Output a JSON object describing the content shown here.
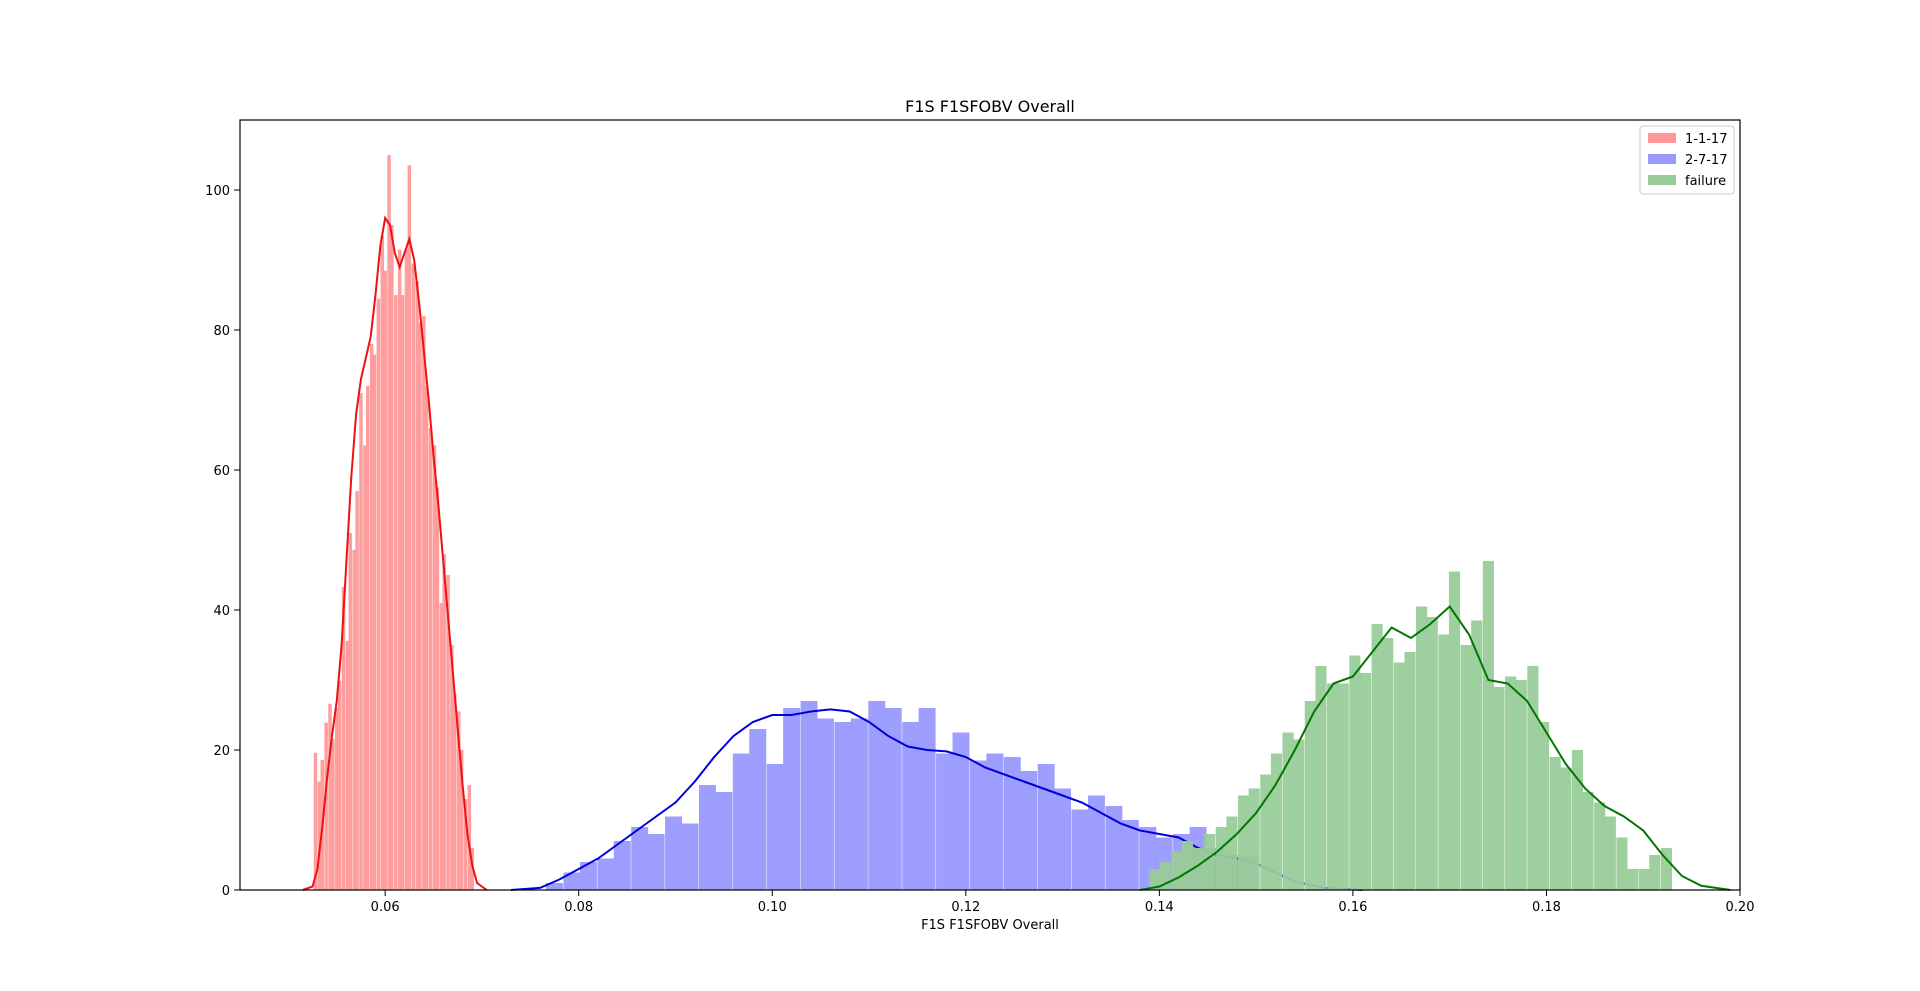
{
  "chart_data": {
    "type": "histogram",
    "title": "F1S F1SFOBV Overall",
    "xlabel": "F1S F1SFOBV Overall",
    "ylabel": "",
    "xlim": [
      0.045,
      0.2
    ],
    "ylim": [
      0,
      110
    ],
    "xticks": [
      0.06,
      0.08,
      0.1,
      0.12,
      0.14,
      0.16,
      0.18,
      0.2
    ],
    "xtick_labels": [
      "0.06",
      "0.08",
      "0.10",
      "0.12",
      "0.14",
      "0.16",
      "0.18",
      "0.20"
    ],
    "yticks": [
      0,
      20,
      40,
      60,
      80,
      100
    ],
    "ytick_labels": [
      "0",
      "20",
      "40",
      "60",
      "80",
      "100"
    ],
    "legend_position": "top-right",
    "grid": false,
    "series": [
      {
        "name": "1-1-17",
        "bar_color": "#ff9999",
        "line_color": "#ee1111",
        "bin_width": 0.00036,
        "bins": [
          [
            0.0528,
            19.6
          ],
          [
            0.0532,
            15.5
          ],
          [
            0.0535,
            18.6
          ],
          [
            0.0539,
            23.9
          ],
          [
            0.0543,
            26.6
          ],
          [
            0.0546,
            21.6
          ],
          [
            0.055,
            26.0
          ],
          [
            0.0553,
            29.9
          ],
          [
            0.0557,
            43.3
          ],
          [
            0.0561,
            35.6
          ],
          [
            0.0564,
            51.0
          ],
          [
            0.0568,
            48.6
          ],
          [
            0.0571,
            57.0
          ],
          [
            0.0575,
            71.0
          ],
          [
            0.0579,
            63.5
          ],
          [
            0.0582,
            72.0
          ],
          [
            0.0586,
            78.0
          ],
          [
            0.0589,
            76.5
          ],
          [
            0.0593,
            84.5
          ],
          [
            0.0597,
            93.5
          ],
          [
            0.06,
            88.5
          ],
          [
            0.0604,
            105.0
          ],
          [
            0.0607,
            95.0
          ],
          [
            0.0611,
            85.0
          ],
          [
            0.0615,
            91.5
          ],
          [
            0.0618,
            85.0
          ],
          [
            0.0622,
            91.5
          ],
          [
            0.0625,
            103.5
          ],
          [
            0.0629,
            89.5
          ],
          [
            0.0633,
            87.0
          ],
          [
            0.0636,
            81.0
          ],
          [
            0.064,
            82.0
          ],
          [
            0.0643,
            72.0
          ],
          [
            0.0647,
            66.0
          ],
          [
            0.0651,
            63.5
          ],
          [
            0.0654,
            57.5
          ],
          [
            0.0658,
            41.0
          ],
          [
            0.0661,
            48.0
          ],
          [
            0.0665,
            45.0
          ],
          [
            0.0669,
            35.0
          ],
          [
            0.0672,
            28.0
          ],
          [
            0.0676,
            25.5
          ],
          [
            0.0679,
            20.0
          ],
          [
            0.0683,
            13.0
          ],
          [
            0.0687,
            15.0
          ],
          [
            0.069,
            6.0
          ]
        ],
        "kde": [
          [
            0.0515,
            0.0
          ],
          [
            0.0525,
            0.5
          ],
          [
            0.053,
            3.0
          ],
          [
            0.0535,
            9.0
          ],
          [
            0.054,
            16.0
          ],
          [
            0.0545,
            22.0
          ],
          [
            0.055,
            27.0
          ],
          [
            0.0555,
            35.0
          ],
          [
            0.056,
            47.0
          ],
          [
            0.0565,
            59.0
          ],
          [
            0.057,
            68.0
          ],
          [
            0.0575,
            73.0
          ],
          [
            0.058,
            76.0
          ],
          [
            0.0585,
            79.0
          ],
          [
            0.059,
            85.0
          ],
          [
            0.0595,
            92.0
          ],
          [
            0.06,
            96.0
          ],
          [
            0.0605,
            95.0
          ],
          [
            0.061,
            91.0
          ],
          [
            0.0615,
            89.0
          ],
          [
            0.062,
            91.0
          ],
          [
            0.0625,
            93.0
          ],
          [
            0.063,
            90.0
          ],
          [
            0.0635,
            84.0
          ],
          [
            0.064,
            77.0
          ],
          [
            0.0645,
            70.0
          ],
          [
            0.065,
            62.0
          ],
          [
            0.0655,
            55.0
          ],
          [
            0.066,
            47.0
          ],
          [
            0.0665,
            39.0
          ],
          [
            0.067,
            31.0
          ],
          [
            0.0675,
            23.0
          ],
          [
            0.068,
            15.0
          ],
          [
            0.0685,
            8.0
          ],
          [
            0.069,
            3.5
          ],
          [
            0.0695,
            1.0
          ],
          [
            0.0705,
            0.0
          ]
        ]
      },
      {
        "name": "2-7-17",
        "bar_color": "#9999ff",
        "line_color": "#0000dd",
        "bin_width": 0.00175,
        "bins": [
          [
            0.0775,
            1.0
          ],
          [
            0.0793,
            2.5
          ],
          [
            0.081,
            4.0
          ],
          [
            0.0828,
            4.5
          ],
          [
            0.0845,
            7.0
          ],
          [
            0.0863,
            9.0
          ],
          [
            0.088,
            8.0
          ],
          [
            0.0898,
            10.5
          ],
          [
            0.0915,
            9.5
          ],
          [
            0.0933,
            15.0
          ],
          [
            0.095,
            14.0
          ],
          [
            0.0968,
            19.5
          ],
          [
            0.0985,
            23.0
          ],
          [
            0.1003,
            18.0
          ],
          [
            0.102,
            26.0
          ],
          [
            0.1038,
            27.0
          ],
          [
            0.1055,
            24.5
          ],
          [
            0.1073,
            24.0
          ],
          [
            0.109,
            24.5
          ],
          [
            0.1108,
            27.0
          ],
          [
            0.1125,
            26.0
          ],
          [
            0.1143,
            24.0
          ],
          [
            0.116,
            26.0
          ],
          [
            0.1178,
            19.5
          ],
          [
            0.1195,
            22.5
          ],
          [
            0.1213,
            18.5
          ],
          [
            0.123,
            19.5
          ],
          [
            0.1248,
            19.0
          ],
          [
            0.1265,
            17.0
          ],
          [
            0.1283,
            18.0
          ],
          [
            0.13,
            14.5
          ],
          [
            0.1318,
            11.5
          ],
          [
            0.1335,
            13.5
          ],
          [
            0.1353,
            12.0
          ],
          [
            0.137,
            10.0
          ],
          [
            0.1388,
            9.0
          ],
          [
            0.1405,
            7.5
          ],
          [
            0.1423,
            8.0
          ],
          [
            0.144,
            9.0
          ],
          [
            0.1458,
            6.0
          ],
          [
            0.1475,
            5.0
          ],
          [
            0.1493,
            5.0
          ]
        ],
        "kde": [
          [
            0.073,
            0.0
          ],
          [
            0.076,
            0.3
          ],
          [
            0.078,
            1.5
          ],
          [
            0.08,
            3.0
          ],
          [
            0.082,
            4.5
          ],
          [
            0.084,
            6.5
          ],
          [
            0.086,
            8.5
          ],
          [
            0.088,
            10.5
          ],
          [
            0.09,
            12.5
          ],
          [
            0.092,
            15.5
          ],
          [
            0.094,
            19.0
          ],
          [
            0.096,
            22.0
          ],
          [
            0.098,
            24.0
          ],
          [
            0.1,
            25.0
          ],
          [
            0.102,
            25.0
          ],
          [
            0.104,
            25.5
          ],
          [
            0.106,
            25.8
          ],
          [
            0.108,
            25.5
          ],
          [
            0.11,
            24.0
          ],
          [
            0.112,
            22.0
          ],
          [
            0.114,
            20.5
          ],
          [
            0.116,
            20.0
          ],
          [
            0.118,
            19.8
          ],
          [
            0.12,
            19.0
          ],
          [
            0.122,
            17.5
          ],
          [
            0.124,
            16.5
          ],
          [
            0.126,
            15.5
          ],
          [
            0.128,
            14.5
          ],
          [
            0.13,
            13.5
          ],
          [
            0.132,
            12.5
          ],
          [
            0.134,
            11.0
          ],
          [
            0.136,
            9.5
          ],
          [
            0.138,
            8.5
          ],
          [
            0.14,
            8.0
          ],
          [
            0.142,
            7.5
          ],
          [
            0.144,
            6.0
          ],
          [
            0.146,
            5.0
          ],
          [
            0.148,
            4.5
          ],
          [
            0.15,
            3.8
          ],
          [
            0.152,
            2.5
          ],
          [
            0.154,
            1.2
          ],
          [
            0.157,
            0.3
          ],
          [
            0.161,
            0.0
          ]
        ]
      },
      {
        "name": "failure",
        "bar_color": "#99cc99",
        "line_color": "#007700",
        "bin_width": 0.00115,
        "bins": [
          [
            0.1395,
            3.0
          ],
          [
            0.1406,
            4.0
          ],
          [
            0.1418,
            5.5
          ],
          [
            0.1429,
            7.0
          ],
          [
            0.1441,
            6.0
          ],
          [
            0.1452,
            8.0
          ],
          [
            0.1464,
            9.0
          ],
          [
            0.1475,
            10.5
          ],
          [
            0.1487,
            13.5
          ],
          [
            0.1498,
            14.5
          ],
          [
            0.151,
            16.5
          ],
          [
            0.1521,
            19.5
          ],
          [
            0.1533,
            22.5
          ],
          [
            0.1544,
            21.5
          ],
          [
            0.1556,
            27.0
          ],
          [
            0.1567,
            32.0
          ],
          [
            0.1579,
            29.5
          ],
          [
            0.159,
            29.5
          ],
          [
            0.1602,
            33.5
          ],
          [
            0.1613,
            31.0
          ],
          [
            0.1625,
            38.0
          ],
          [
            0.1636,
            36.0
          ],
          [
            0.1648,
            32.5
          ],
          [
            0.1659,
            34.0
          ],
          [
            0.1671,
            40.5
          ],
          [
            0.1682,
            39.0
          ],
          [
            0.1694,
            36.5
          ],
          [
            0.1705,
            45.5
          ],
          [
            0.1717,
            35.0
          ],
          [
            0.1728,
            38.5
          ],
          [
            0.174,
            47.0
          ],
          [
            0.1751,
            29.0
          ],
          [
            0.1763,
            30.5
          ],
          [
            0.1774,
            30.0
          ],
          [
            0.1786,
            32.0
          ],
          [
            0.1797,
            24.0
          ],
          [
            0.1809,
            19.0
          ],
          [
            0.182,
            17.5
          ],
          [
            0.1832,
            20.0
          ],
          [
            0.1843,
            14.0
          ],
          [
            0.1855,
            12.5
          ],
          [
            0.1866,
            10.5
          ],
          [
            0.1878,
            7.5
          ],
          [
            0.1889,
            3.0
          ],
          [
            0.1901,
            3.0
          ],
          [
            0.1912,
            5.0
          ],
          [
            0.1924,
            6.0
          ]
        ],
        "kde": [
          [
            0.138,
            0.0
          ],
          [
            0.14,
            0.5
          ],
          [
            0.142,
            1.8
          ],
          [
            0.144,
            3.5
          ],
          [
            0.146,
            5.5
          ],
          [
            0.148,
            8.0
          ],
          [
            0.15,
            11.0
          ],
          [
            0.152,
            15.0
          ],
          [
            0.154,
            20.0
          ],
          [
            0.156,
            25.5
          ],
          [
            0.158,
            29.5
          ],
          [
            0.16,
            30.5
          ],
          [
            0.162,
            34.0
          ],
          [
            0.164,
            37.5
          ],
          [
            0.166,
            36.0
          ],
          [
            0.168,
            38.0
          ],
          [
            0.17,
            40.5
          ],
          [
            0.172,
            36.5
          ],
          [
            0.174,
            30.0
          ],
          [
            0.176,
            29.5
          ],
          [
            0.178,
            27.0
          ],
          [
            0.18,
            22.5
          ],
          [
            0.182,
            18.0
          ],
          [
            0.184,
            14.5
          ],
          [
            0.186,
            12.0
          ],
          [
            0.188,
            10.5
          ],
          [
            0.19,
            8.5
          ],
          [
            0.192,
            5.0
          ],
          [
            0.194,
            2.0
          ],
          [
            0.196,
            0.6
          ],
          [
            0.199,
            0.0
          ]
        ]
      }
    ]
  }
}
